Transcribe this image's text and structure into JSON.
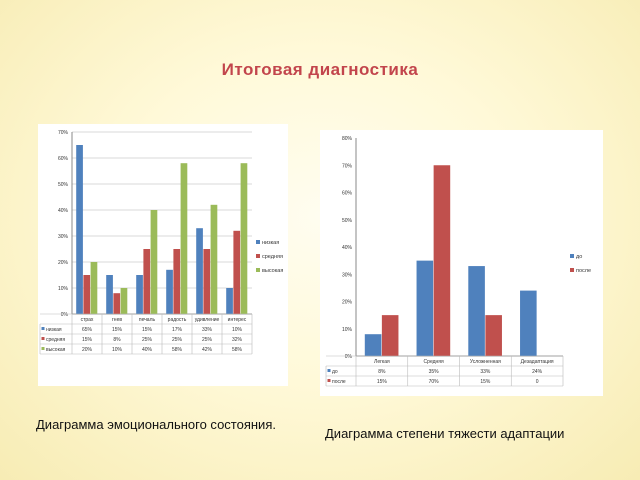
{
  "title": "Итоговая диагностика",
  "colors": {
    "s1": "#4f81bd",
    "s2": "#c0504d",
    "s3": "#9bbb59",
    "grid": "#d9d9d9",
    "axis": "#888888"
  },
  "captions": {
    "left": "Диаграмма эмоционального состояния.",
    "right": "Диаграмма степени тяжести адаптации"
  },
  "chart_data": [
    {
      "type": "bar",
      "title": "",
      "categories": [
        "страх",
        "гнев",
        "печаль",
        "радость",
        "удивление",
        "интерес"
      ],
      "ylim": [
        0,
        70
      ],
      "yticks": [
        "0%",
        "10%",
        "20%",
        "30%",
        "40%",
        "50%",
        "60%",
        "70%"
      ],
      "grid": true,
      "legend": "right",
      "series": [
        {
          "name": "низкая",
          "values": [
            65,
            15,
            15,
            17,
            33,
            10
          ],
          "labels": [
            "65%",
            "15%",
            "15%",
            "17%",
            "33%",
            "10%"
          ]
        },
        {
          "name": "средняя",
          "values": [
            15,
            8,
            25,
            25,
            25,
            32
          ],
          "labels": [
            "15%",
            "8%",
            "25%",
            "25%",
            "25%",
            "32%"
          ]
        },
        {
          "name": "высокая",
          "values": [
            20,
            10,
            40,
            58,
            42,
            58
          ],
          "labels": [
            "20%",
            "10%",
            "40%",
            "58%",
            "42%",
            "58%"
          ]
        }
      ]
    },
    {
      "type": "bar",
      "title": "",
      "categories": [
        "Легкая",
        "Средняя",
        "Усложненная",
        "Дезадаптация"
      ],
      "ylim": [
        0,
        80
      ],
      "yticks": [
        "0%",
        "10%",
        "20%",
        "30%",
        "40%",
        "50%",
        "60%",
        "70%",
        "80%"
      ],
      "grid": false,
      "legend": "right",
      "series": [
        {
          "name": "до",
          "values": [
            8,
            35,
            33,
            24
          ],
          "labels": [
            "8%",
            "35%",
            "33%",
            "24%"
          ]
        },
        {
          "name": "после",
          "values": [
            15,
            70,
            15,
            0
          ],
          "labels": [
            "15%",
            "70%",
            "15%",
            "0"
          ]
        }
      ]
    }
  ]
}
